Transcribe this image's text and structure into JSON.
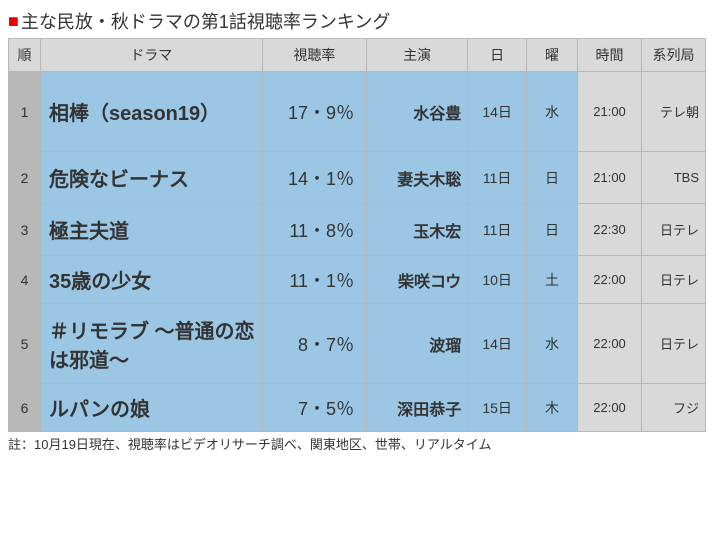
{
  "title": {
    "marker": "■",
    "text": "主な民放・秋ドラマの第1話視聴率ランキング"
  },
  "table": {
    "columns": [
      "順",
      "ドラマ",
      "視聴率",
      "主演",
      "日",
      "曜",
      "時間",
      "系列局"
    ],
    "rows": [
      {
        "rank": "1",
        "drama": "相棒（season19）",
        "rating": "17・9％",
        "lead": "水谷豊",
        "date": "14日",
        "day": "水",
        "time": "21:00",
        "network": "テレ朝"
      },
      {
        "rank": "2",
        "drama": "危険なビーナス",
        "rating": "14・1％",
        "lead": "妻夫木聡",
        "date": "11日",
        "day": "日",
        "time": "21:00",
        "network": "TBS"
      },
      {
        "rank": "3",
        "drama": "極主夫道",
        "rating": "11・8％",
        "lead": "玉木宏",
        "date": "11日",
        "day": "日",
        "time": "22:30",
        "network": "日テレ"
      },
      {
        "rank": "4",
        "drama": "35歳の少女",
        "rating": "11・1％",
        "lead": "柴咲コウ",
        "date": "10日",
        "day": "土",
        "time": "22:00",
        "network": "日テレ"
      },
      {
        "rank": "5",
        "drama": "＃リモラブ ～普通の恋は邪道～",
        "rating": "8・7％",
        "lead": "波瑠",
        "date": "14日",
        "day": "水",
        "time": "22:00",
        "network": "日テレ"
      },
      {
        "rank": "6",
        "drama": "ルパンの娘",
        "rating": "7・5％",
        "lead": "深田恭子",
        "date": "15日",
        "day": "木",
        "time": "22:00",
        "network": "フジ"
      }
    ]
  },
  "footnote": "註：10月19日現在、視聴率はビデオリサーチ調べ、関東地区、世帯、リアルタイム"
}
